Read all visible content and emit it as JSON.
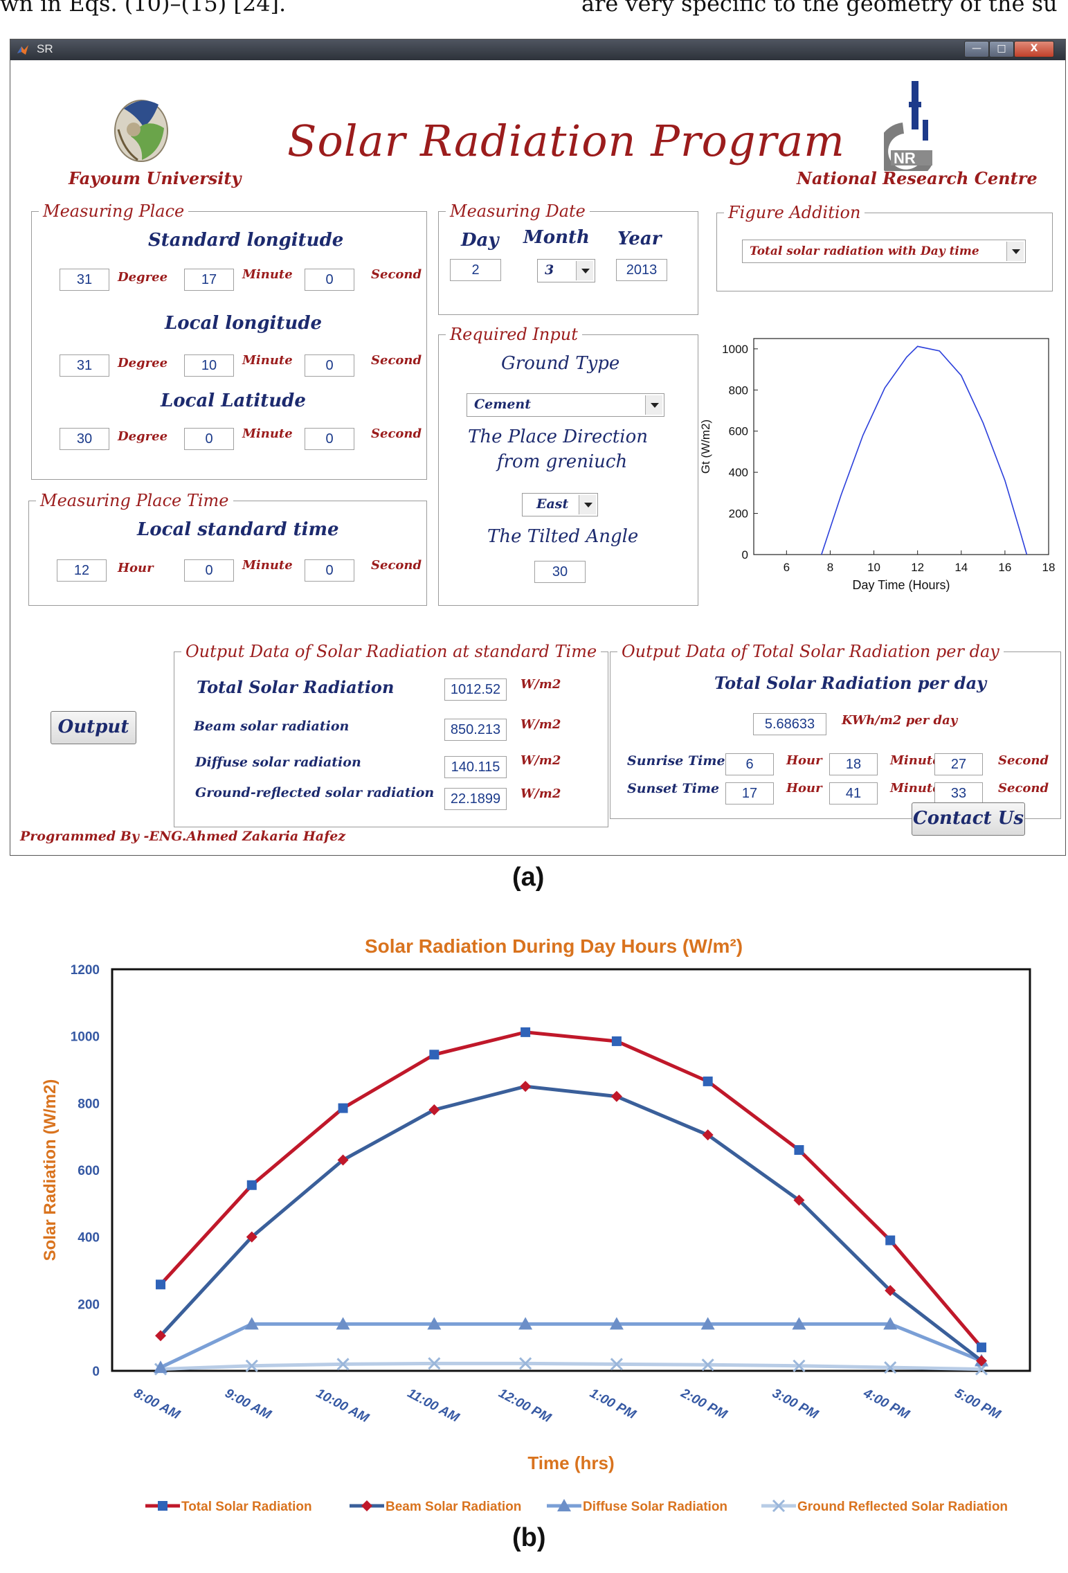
{
  "top_text": {
    "left": "wn in Eqs. (10)–(15) [24].",
    "right": "are very specific to the geometry of the su"
  },
  "window": {
    "title": "SR",
    "controls": {
      "minimize": "—",
      "maximize": "□",
      "close": "X"
    },
    "header": {
      "program_title": "Solar Radiation Program",
      "left_org": "Fayoum University",
      "right_org": "National Research Centre",
      "nrc_logo_text": "NR"
    },
    "measuring_place": {
      "legend": "Measuring Place",
      "std_long_title": "Standard longitude",
      "std_long": {
        "deg": "31",
        "min": "17",
        "sec": "0"
      },
      "local_long_title": "Local longitude",
      "local_long": {
        "deg": "31",
        "min": "10",
        "sec": "0"
      },
      "local_lat_title": "Local Latitude",
      "local_lat": {
        "deg": "30",
        "min": "0",
        "sec": "0"
      },
      "unit_degree": "Degree",
      "unit_minute": "Minute",
      "unit_second": "Second"
    },
    "measuring_time": {
      "legend": "Measuring Place Time",
      "title": "Local standard time",
      "hour": "12",
      "min": "0",
      "sec": "0",
      "unit_hour": "Hour",
      "unit_minute": "Minute",
      "unit_second": "Second"
    },
    "measuring_date": {
      "legend": "Measuring Date",
      "day_label": "Day",
      "month_label": "Month",
      "year_label": "Year",
      "day": "2",
      "month": "3",
      "year": "2013"
    },
    "required_input": {
      "legend": "Required Input",
      "ground_type_label": "Ground Type",
      "ground_type": "Cement",
      "direction_label_1": "The Place Direction",
      "direction_label_2": "from greniuch",
      "direction": "East",
      "tilt_label": "The Tilted Angle",
      "tilt": "30"
    },
    "figure_addition": {
      "legend": "Figure Addition",
      "selected": "Total solar radiation with Day time"
    },
    "output_std": {
      "legend": "Output Data of Solar Radiation at standard Time",
      "total_label": "Total Solar Radiation",
      "total": "1012.52",
      "beam_label": "Beam solar radiation",
      "beam": "850.213",
      "diffuse_label": "Diffuse solar radiation",
      "diffuse": "140.115",
      "ground_label": "Ground-reflected solar radiation",
      "ground": "22.1899",
      "unit": "W/m2"
    },
    "output_day": {
      "legend": "Output Data of Total Solar Radiation per day",
      "title": "Total Solar Radiation per day",
      "value": "5.68633",
      "unit": "KWh/m2 per day",
      "sunrise_label": "Sunrise Time",
      "sunrise": {
        "h": "6",
        "m": "18",
        "s": "27"
      },
      "sunset_label": "Sunset Time",
      "sunset": {
        "h": "17",
        "m": "41",
        "s": "33"
      },
      "unit_hour": "Hour",
      "unit_minute": "Minute",
      "unit_second": "Second"
    },
    "output_button": "Output",
    "contact_button": "Contact Us",
    "footer": "Programmed By -ENG.Ahmed Zakaria Hafez",
    "caption_a": "(a)"
  },
  "chart_data": [
    {
      "type": "line",
      "xlabel": "Day Time (Hours)",
      "ylabel": "Gt (W/m2)",
      "xlim": [
        4.5,
        18
      ],
      "ylim": [
        0,
        1050
      ],
      "xticks": [
        6,
        8,
        10,
        12,
        14,
        16,
        18
      ],
      "yticks": [
        0,
        200,
        400,
        600,
        800,
        1000
      ],
      "x": [
        7.6,
        8.5,
        9.5,
        10.5,
        11.5,
        12,
        13,
        14,
        15,
        16,
        16.7,
        17.0
      ],
      "series": [
        {
          "values": [
            0,
            290,
            580,
            810,
            960,
            1012,
            990,
            870,
            640,
            360,
            110,
            0
          ],
          "color": "#2b3fdb"
        }
      ]
    },
    {
      "type": "line",
      "title": "Solar Radiation During Day Hours (W/m²)",
      "xlabel": "Time (hrs)",
      "ylabel": "Solar Radiation (W/m2)",
      "ylim": [
        0,
        1200
      ],
      "yticks": [
        0,
        200,
        400,
        600,
        800,
        1000,
        1200
      ],
      "categories": [
        "8:00 AM",
        "9:00 AM",
        "10:00 AM",
        "11:00 AM",
        "12:00 PM",
        "1:00 PM",
        "2:00 PM",
        "3:00 PM",
        "4:00 PM",
        "5:00 PM"
      ],
      "legend_position": "bottom",
      "series": [
        {
          "name": "Total Solar Radiation",
          "color": "#c0182a",
          "marker": "square",
          "marker_color": "#2f63b8",
          "values": [
            258,
            555,
            785,
            945,
            1012,
            985,
            865,
            660,
            390,
            70
          ]
        },
        {
          "name": "Beam Solar Radiation",
          "color": "#3a5f9a",
          "marker": "diamond",
          "marker_color": "#c0182a",
          "values": [
            105,
            400,
            630,
            780,
            850,
            820,
            705,
            510,
            240,
            30
          ]
        },
        {
          "name": "Diffuse Solar Radiation",
          "color": "#7a9fd6",
          "marker": "triangle",
          "marker_color": "#6c8fc8",
          "values": [
            10,
            140,
            140,
            140,
            140,
            140,
            140,
            140,
            140,
            30
          ]
        },
        {
          "name": "Ground Reflected Solar Radiation",
          "color": "#b8cce6",
          "marker": "cross",
          "marker_color": "#9ab6da",
          "values": [
            5,
            15,
            20,
            22,
            22,
            20,
            18,
            15,
            10,
            5
          ]
        }
      ]
    }
  ],
  "caption_b": "(b)"
}
